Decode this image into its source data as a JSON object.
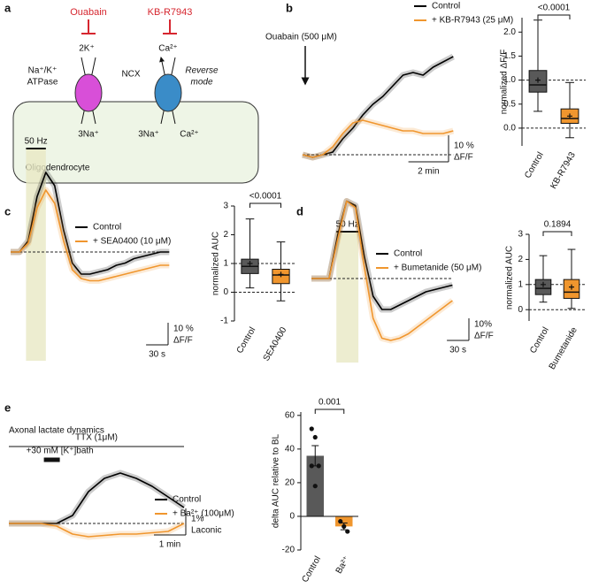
{
  "panel_labels": [
    "a",
    "b",
    "c",
    "d",
    "e"
  ],
  "diagram": {
    "inhibitor_1": "Ouabain",
    "inhibitor_2": "KB-R7943",
    "pump_label_1": "Na⁺/K⁺",
    "pump_label_2": "ATPase",
    "pump_in": "2K⁺",
    "pump_out": "3Na⁺",
    "exchanger_label": "NCX",
    "exchanger_mode_1": "Reverse",
    "exchanger_mode_2": "mode",
    "exchanger_top": "Ca²⁺",
    "exchanger_bottom_left": "3Na⁺",
    "exchanger_bottom_right": "Ca²⁺",
    "cell": "Oligodendrocyte"
  },
  "chart_data": [
    {
      "type": "line",
      "annotation": "Ouabain (500 μM)",
      "x": [
        0,
        0.5,
        1,
        1.5,
        2,
        2.5,
        3,
        3.5,
        4,
        4.5,
        5,
        5.5,
        6,
        6.5,
        7,
        7.5
      ],
      "series": [
        {
          "name": "Control",
          "color": "#000000",
          "values": [
            0,
            -1,
            0,
            1,
            6,
            10,
            15,
            19,
            22,
            26,
            30,
            31,
            30,
            33,
            35,
            37
          ]
        },
        {
          "name": "+ KB-R7943 (25 μM)",
          "color": "#f0962e",
          "values": [
            0,
            -1,
            0,
            3,
            8,
            12,
            13,
            12,
            11,
            10,
            9,
            9,
            8,
            8,
            8,
            9
          ]
        }
      ],
      "hlines": [
        0
      ],
      "scalebar": {
        "x": {
          "value": 2,
          "label": "2 min"
        },
        "y": {
          "value": 10,
          "label": "10 %",
          "unit": "ΔF/F"
        }
      }
    },
    {
      "type": "box",
      "ylabel": "normalized ΔF/F",
      "categories": [
        "Control",
        "KB-R7943"
      ],
      "pvalue": "<0.0001",
      "boxes": [
        {
          "color": "#595959",
          "min": 0.35,
          "q1": 0.75,
          "median": 0.9,
          "q3": 1.2,
          "max": 2.25,
          "mean": 1.0
        },
        {
          "color": "#f0962e",
          "min": -0.2,
          "q1": 0.1,
          "median": 0.2,
          "q3": 0.4,
          "max": 0.95,
          "mean": 0.25
        }
      ],
      "ylim": [
        -0.37,
        2.3
      ],
      "yticks": [
        {
          "value": 0,
          "label": "0.0"
        },
        {
          "value": 0.5,
          "label": "0.5"
        },
        {
          "value": 1,
          "label": "1.0"
        },
        {
          "value": 1.5,
          "label": "1.5"
        },
        {
          "value": 2,
          "label": "2.0"
        }
      ],
      "hlines": [
        0,
        1
      ]
    },
    {
      "type": "line",
      "stimulus": {
        "label": "50 Hz",
        "range": [
          21,
          48
        ]
      },
      "x": [
        0,
        12,
        24,
        36,
        48,
        60,
        72,
        84,
        96,
        108,
        120,
        132,
        144,
        156,
        168,
        180,
        192,
        204,
        216
      ],
      "series": [
        {
          "name": "Control",
          "color": "#000000",
          "values": [
            0,
            0,
            5,
            25,
            36,
            30,
            10,
            -5,
            -10,
            -10,
            -9,
            -8,
            -6,
            -5,
            -3,
            -2,
            -1,
            0,
            0
          ]
        },
        {
          "name": "+ SEA0400 (10 μM)",
          "color": "#f0962e",
          "values": [
            0,
            0,
            4,
            20,
            28,
            22,
            5,
            -8,
            -12,
            -13,
            -13,
            -12,
            -11,
            -10,
            -9,
            -8,
            -7,
            -6,
            -6
          ]
        }
      ],
      "hlines": [
        0
      ],
      "scalebar": {
        "x": {
          "value": 30,
          "label": "30 s"
        },
        "y": {
          "value": 10,
          "label": "10 %",
          "unit": "ΔF/F"
        }
      }
    },
    {
      "type": "box",
      "ylabel": "normalized AUC",
      "categories": [
        "Control",
        "SEA0400"
      ],
      "pvalue": "<0.0001",
      "boxes": [
        {
          "color": "#595959",
          "min": 0.15,
          "q1": 0.65,
          "median": 0.9,
          "q3": 1.15,
          "max": 2.55,
          "mean": 1.0
        },
        {
          "color": "#f0962e",
          "min": -0.3,
          "q1": 0.3,
          "median": 0.6,
          "q3": 0.8,
          "max": 1.75,
          "mean": 0.62
        }
      ],
      "ylim": [
        -1,
        3
      ],
      "yticks": [
        -1,
        0,
        1,
        2,
        3
      ],
      "hlines": [
        0,
        1
      ]
    },
    {
      "type": "line",
      "stimulus": {
        "label": "50 Hz",
        "range": [
          34,
          64
        ]
      },
      "x": [
        0,
        12,
        24,
        36,
        48,
        60,
        72,
        84,
        96,
        108,
        120,
        132,
        144,
        156,
        168,
        180,
        192
      ],
      "series": [
        {
          "name": "Control",
          "color": "#000000",
          "values": [
            0,
            0,
            0,
            20,
            35,
            33,
            10,
            -8,
            -14,
            -14,
            -12,
            -10,
            -8,
            -6,
            -5,
            -4,
            -3
          ]
        },
        {
          "name": "+ Bumetanide (50 μM)",
          "color": "#f0962e",
          "values": [
            0,
            0,
            0,
            18,
            35,
            32,
            5,
            -18,
            -27,
            -28,
            -27,
            -25,
            -22,
            -19,
            -16,
            -13,
            -10
          ]
        }
      ],
      "hlines": [
        0
      ],
      "scalebar": {
        "x": {
          "value": 30,
          "label": "30 s"
        },
        "y": {
          "value": 10,
          "label": "10%",
          "unit": "ΔF/F"
        }
      }
    },
    {
      "type": "box",
      "ylabel": "normalized AUC",
      "categories": [
        "Control",
        "Bumetanide"
      ],
      "pvalue": "0.1894",
      "boxes": [
        {
          "color": "#595959",
          "min": 0.3,
          "q1": 0.6,
          "median": 0.85,
          "q3": 1.2,
          "max": 2.15,
          "mean": 1.0
        },
        {
          "color": "#f0962e",
          "min": 0.05,
          "q1": 0.45,
          "median": 0.7,
          "q3": 1.2,
          "max": 2.4,
          "mean": 0.9
        }
      ],
      "ylim": [
        -0.45,
        3
      ],
      "yticks": [
        0,
        1,
        2,
        3
      ],
      "hlines": [
        0,
        1
      ]
    },
    {
      "type": "line",
      "title": "Axonal lactate dynamics",
      "bars": [
        {
          "label": "TTX (1μM)",
          "range": [
            0,
            5.5
          ]
        },
        {
          "label": "+30 mM [K⁺]bath",
          "range": [
            1.1,
            1.6
          ]
        }
      ],
      "x": [
        0,
        0.5,
        1,
        1.5,
        2,
        2.5,
        3,
        3.5,
        4,
        4.5,
        5,
        5.5
      ],
      "series": [
        {
          "name": "Control",
          "color": "#000000",
          "values": [
            0,
            0,
            0,
            0,
            0.3,
            1.2,
            1.7,
            1.9,
            1.7,
            1.4,
            1.0,
            0.6
          ]
        },
        {
          "name": "+ Ba²⁺ (100μM)",
          "color": "#f0962e",
          "values": [
            0,
            0,
            0,
            -0.1,
            -0.4,
            -0.5,
            -0.45,
            -0.4,
            -0.4,
            -0.35,
            -0.3,
            0
          ]
        }
      ],
      "hlines": [
        0
      ],
      "scalebar": {
        "x": {
          "value": 1,
          "label": "1 min"
        },
        "y": {
          "value": 1,
          "label": "1%",
          "unit": "Laconic"
        }
      }
    },
    {
      "type": "bar",
      "ylabel": "delta AUC relative to BL",
      "categories": [
        "Control",
        "Ba²⁺"
      ],
      "values": [
        36,
        -6
      ],
      "errors": [
        6,
        2
      ],
      "points": [
        [
          52,
          47,
          30,
          30,
          18
        ],
        [
          -3,
          -6,
          -9
        ]
      ],
      "colors": [
        "#595959",
        "#f0962e"
      ],
      "pvalue": "0.001",
      "ylim": [
        -20,
        62
      ],
      "yticks": [
        -20,
        0,
        20,
        40,
        60
      ]
    }
  ]
}
